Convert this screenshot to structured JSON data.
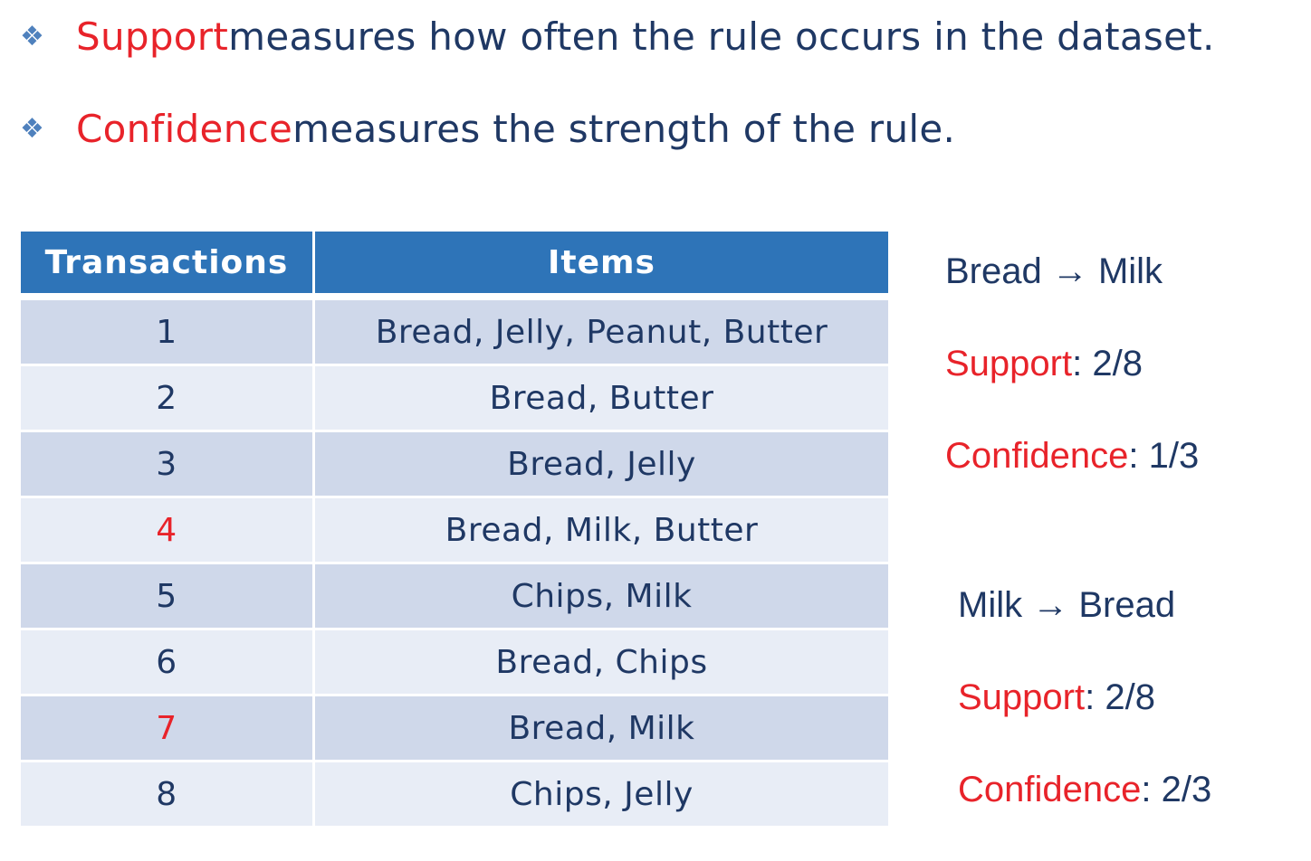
{
  "bullets": [
    {
      "glyph": "❖",
      "term": "Support",
      "text": " measures how often the rule occurs in the dataset."
    },
    {
      "glyph": "❖",
      "term": "Confidence",
      "text": " measures the strength of the rule."
    }
  ],
  "table": {
    "headers": [
      "Transactions",
      "Items"
    ],
    "rows": [
      {
        "id": "1",
        "items": "Bread, Jelly, Peanut, Butter",
        "highlight": false
      },
      {
        "id": "2",
        "items": "Bread, Butter",
        "highlight": false
      },
      {
        "id": "3",
        "items": "Bread, Jelly",
        "highlight": false
      },
      {
        "id": "4",
        "items": "Bread, Milk, Butter",
        "highlight": true
      },
      {
        "id": "5",
        "items": "Chips, Milk",
        "highlight": false
      },
      {
        "id": "6",
        "items": "Bread, Chips",
        "highlight": false
      },
      {
        "id": "7",
        "items": "Bread, Milk",
        "highlight": true
      },
      {
        "id": "8",
        "items": "Chips, Jelly",
        "highlight": false
      }
    ]
  },
  "rules": [
    {
      "rule": "Bread → Milk",
      "support_label": "Support",
      "support_value": ": 2/8",
      "confidence_label": "Confidence",
      "confidence_value": ": 1/3"
    },
    {
      "rule": "Milk → Bread",
      "support_label": "Support",
      "support_value": ": 2/8",
      "confidence_label": "Confidence",
      "confidence_value": ": 2/3"
    }
  ],
  "colors": {
    "accent_red": "#e8232a",
    "header_blue": "#2e74b8",
    "text_navy": "#1f3864"
  }
}
